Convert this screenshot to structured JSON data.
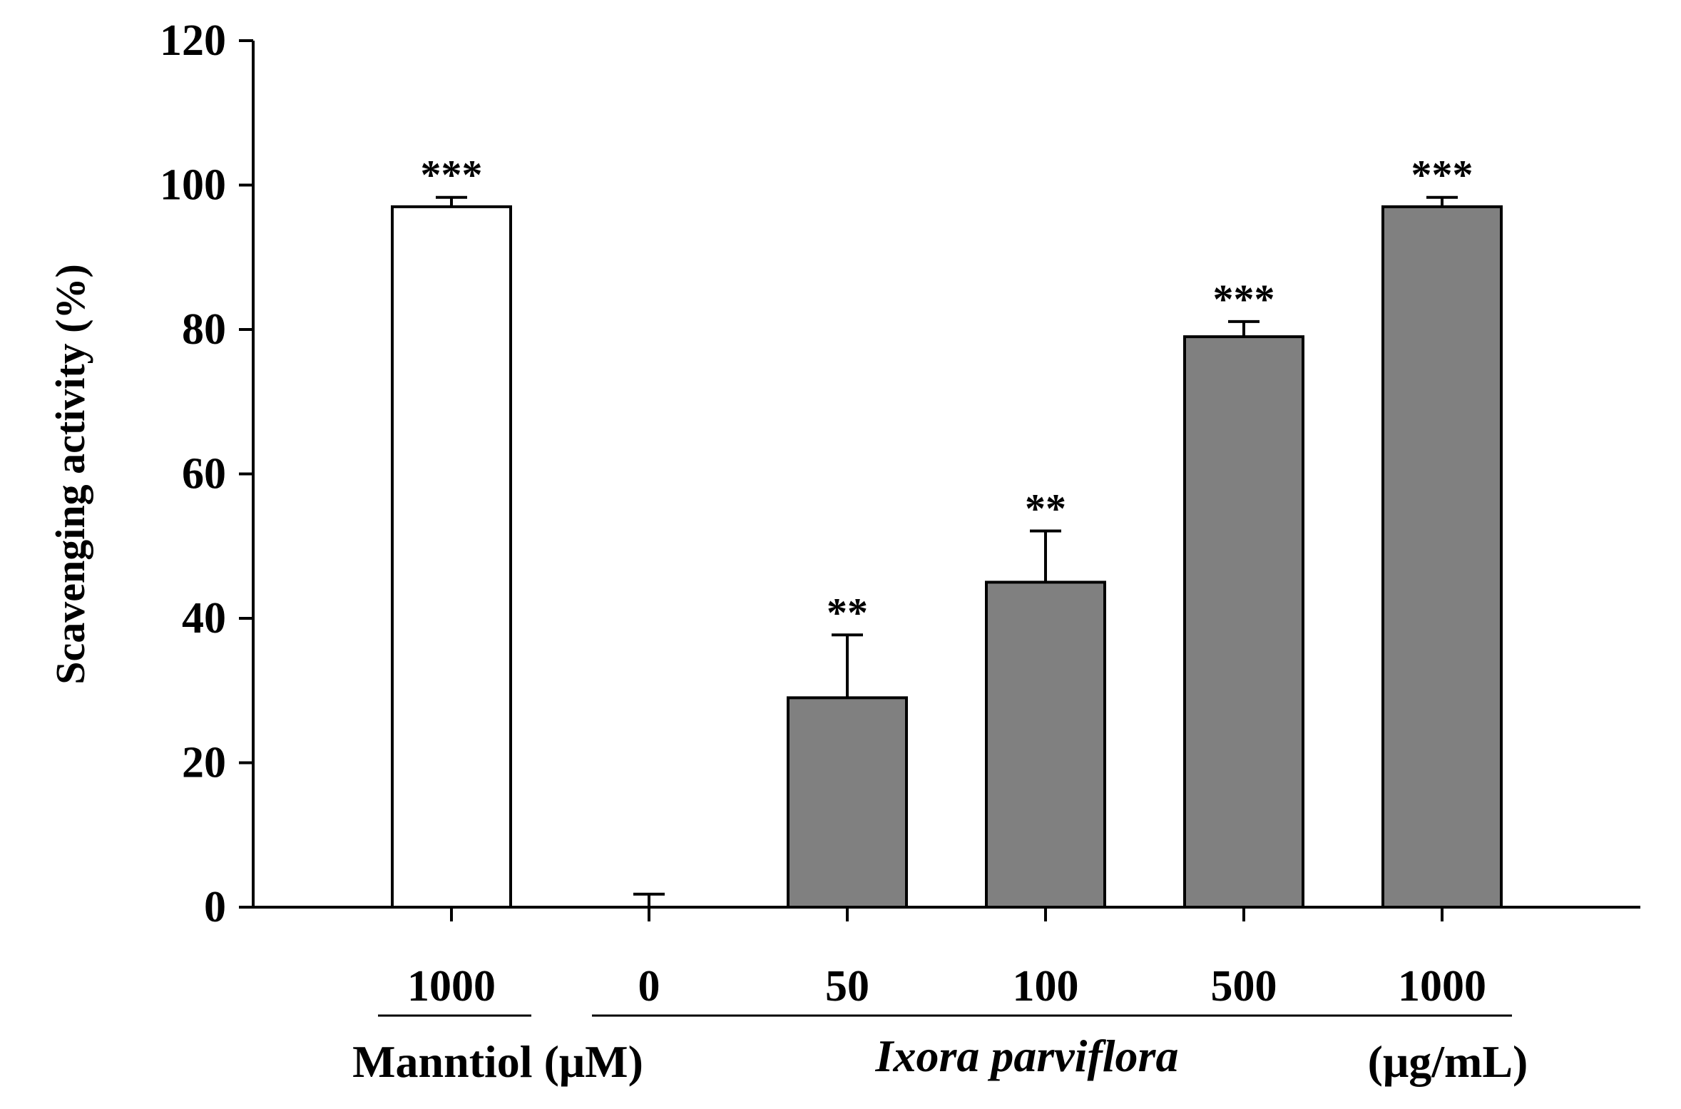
{
  "chart_data": {
    "type": "bar",
    "ylabel": "Scavenging activity (%)",
    "ylim": [
      0,
      120
    ],
    "yticks": [
      0,
      20,
      40,
      60,
      80,
      100,
      120
    ],
    "categories": [
      "1000",
      "0",
      "50",
      "100",
      "500",
      "1000"
    ],
    "values": [
      97,
      0,
      29,
      45,
      79,
      97
    ],
    "errors": [
      1.3,
      1.8,
      8.7,
      7.1,
      2.1,
      1.3
    ],
    "significance": [
      "***",
      "",
      "**",
      "**",
      "***",
      "***"
    ],
    "bar_fill": [
      "#ffffff",
      "#808080",
      "#808080",
      "#808080",
      "#808080",
      "#808080"
    ],
    "groups": [
      {
        "name": "Manntiol (μM)",
        "categories": [
          "1000"
        ]
      },
      {
        "name": "Ixora parviflora",
        "unit": "(μg/mL)",
        "categories": [
          "0",
          "50",
          "100",
          "500",
          "1000"
        ]
      }
    ],
    "grid": false,
    "legend": "none"
  }
}
